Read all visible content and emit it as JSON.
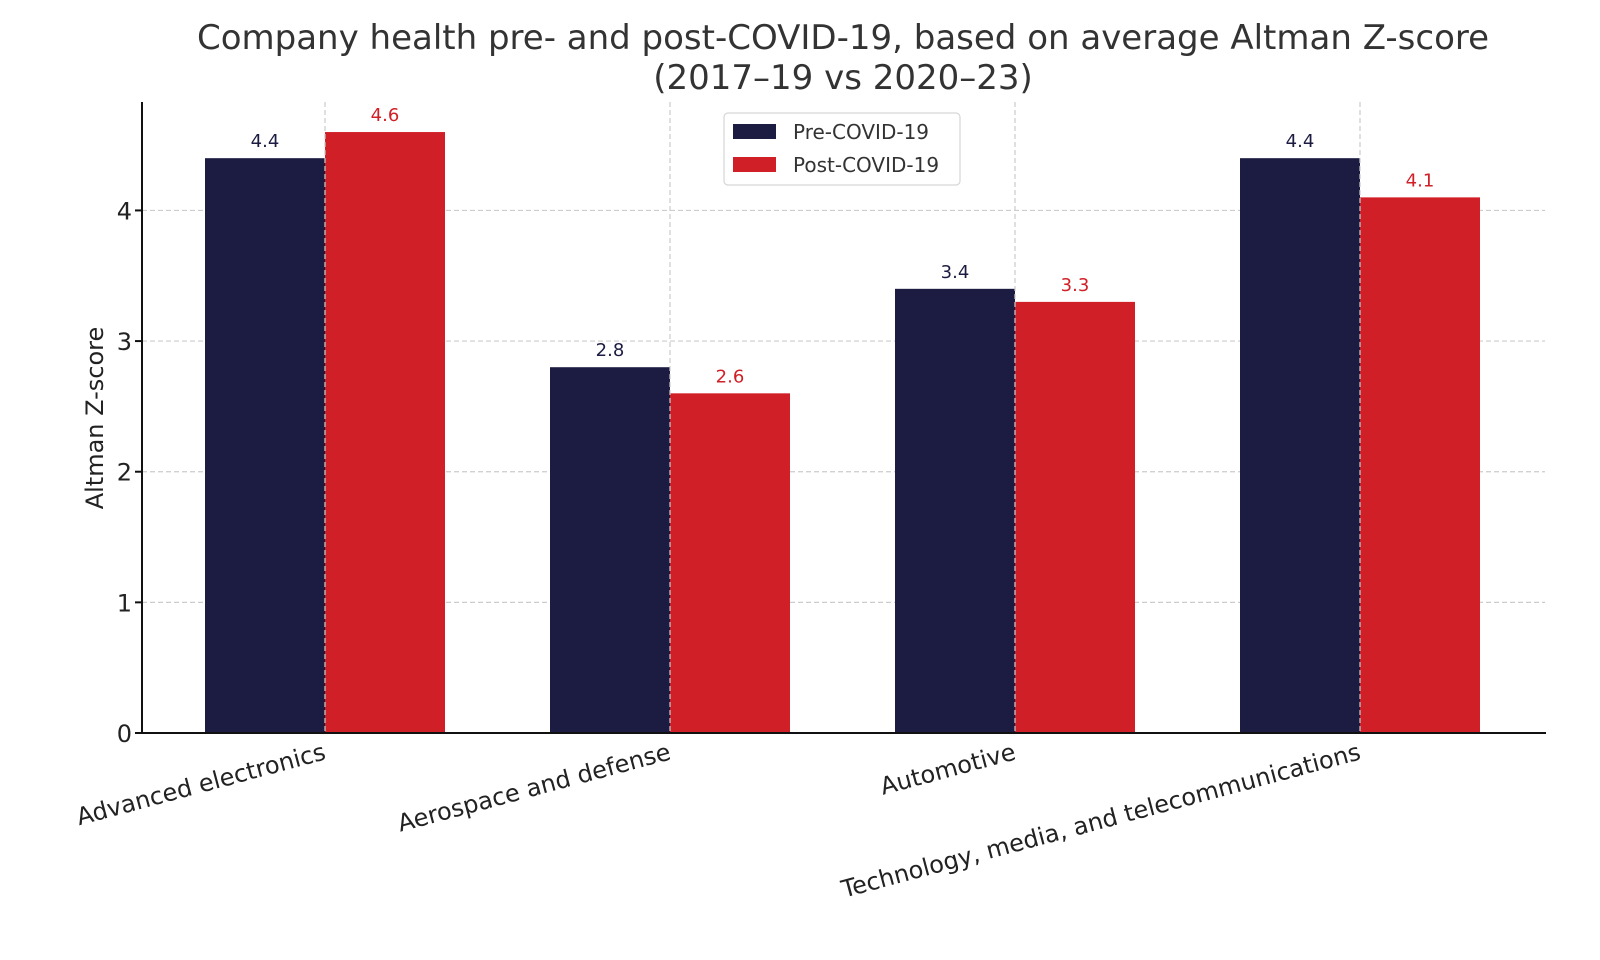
{
  "chart_data": {
    "type": "bar",
    "title_lines": [
      "Company health pre- and post-COVID-19, based on average Altman Z-score",
      "(2017–19 vs 2020–23)"
    ],
    "xlabel": "",
    "ylabel": "Altman Z-score",
    "categories": [
      "Advanced electronics",
      "Aerospace and defense",
      "Automotive",
      "Technology, media, and telecommunications"
    ],
    "series": [
      {
        "name": "Pre-COVID-19",
        "color": "#1c1c42",
        "values": [
          4.4,
          2.8,
          3.4,
          4.4
        ],
        "labels": [
          "4.4",
          "2.8",
          "3.4",
          "4.4"
        ]
      },
      {
        "name": "Post-COVID-19",
        "color": "#d01f26",
        "values": [
          4.6,
          2.6,
          3.3,
          4.1
        ],
        "labels": [
          "4.6",
          "2.6",
          "3.3",
          "4.1"
        ]
      }
    ],
    "ylim": [
      0,
      4.83
    ],
    "yticks": [
      0,
      1,
      2,
      3,
      4
    ],
    "ytick_labels": [
      "0",
      "1",
      "2",
      "3",
      "4"
    ],
    "grid": true,
    "legend": {
      "placement": "top-center"
    }
  }
}
